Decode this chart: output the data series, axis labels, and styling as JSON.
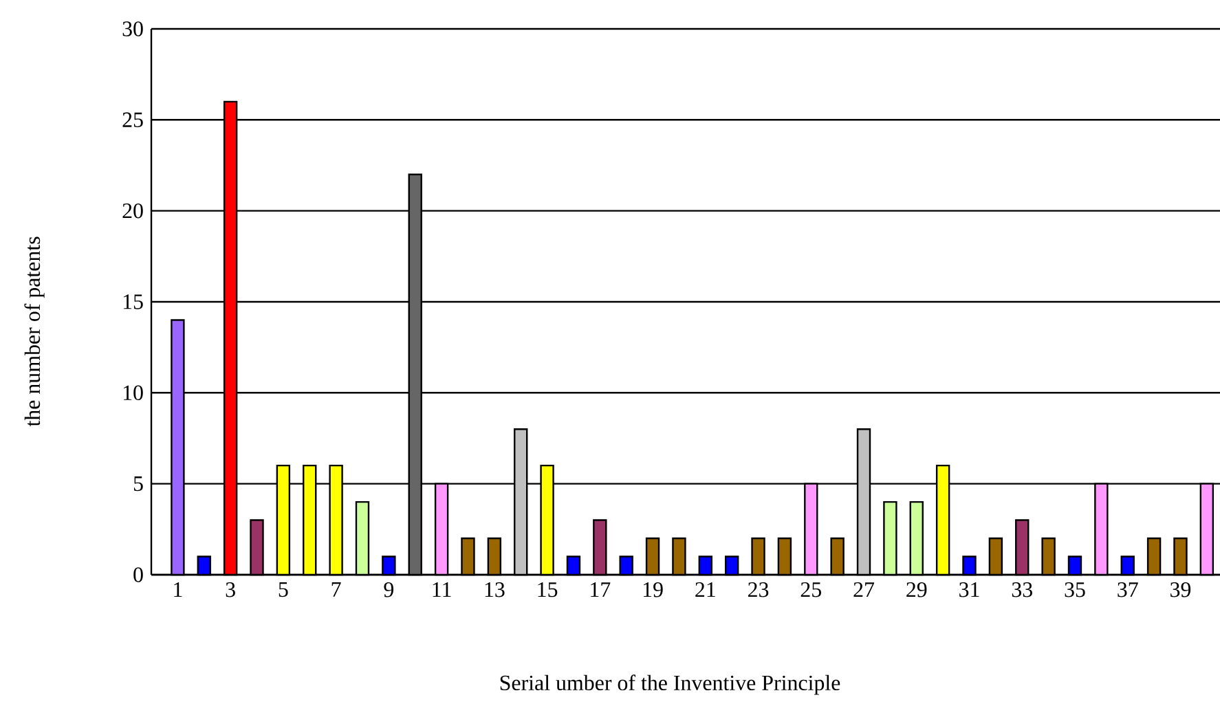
{
  "chart_data": {
    "type": "bar",
    "xlabel": "Serial umber of the Inventive Principle",
    "ylabel": "the number of patents",
    "categories": [
      "1",
      null,
      "3",
      null,
      "5",
      null,
      "7",
      null,
      "9",
      null,
      "11",
      null,
      "13",
      null,
      "15",
      null,
      "17",
      null,
      "19",
      null,
      "21",
      null,
      "23",
      null,
      "25",
      null,
      "27",
      null,
      "29",
      null,
      "31",
      null,
      "33",
      null,
      "35",
      null,
      "37",
      null,
      "39",
      null
    ],
    "values": [
      14,
      1,
      26,
      3,
      6,
      6,
      6,
      4,
      1,
      22,
      5,
      2,
      2,
      8,
      6,
      1,
      3,
      1,
      2,
      2,
      1,
      1,
      2,
      2,
      5,
      2,
      8,
      4,
      4,
      6,
      1,
      2,
      3,
      2,
      1,
      5,
      1,
      2,
      2,
      5
    ],
    "colors": [
      "#9966ff",
      "#0000ff",
      "#ff0000",
      "#993366",
      "#ffff00",
      "#ffff00",
      "#ffff00",
      "#ccff99",
      "#0000ff",
      "#666666",
      "#ff99ff",
      "#996600",
      "#996600",
      "#c0c0c0",
      "#ffff00",
      "#0000ff",
      "#993366",
      "#0000ff",
      "#996600",
      "#996600",
      "#0000ff",
      "#0000ff",
      "#996600",
      "#996600",
      "#ff99ff",
      "#996600",
      "#c0c0c0",
      "#ccff99",
      "#ccff99",
      "#ffff00",
      "#0000ff",
      "#996600",
      "#993366",
      "#996600",
      "#0000ff",
      "#ff99ff",
      "#0000ff",
      "#996600",
      "#996600",
      "#ff99ff"
    ],
    "ylim": [
      0,
      30
    ],
    "yticks": [
      0,
      5,
      10,
      15,
      20,
      25,
      30
    ],
    "grid": "y"
  }
}
